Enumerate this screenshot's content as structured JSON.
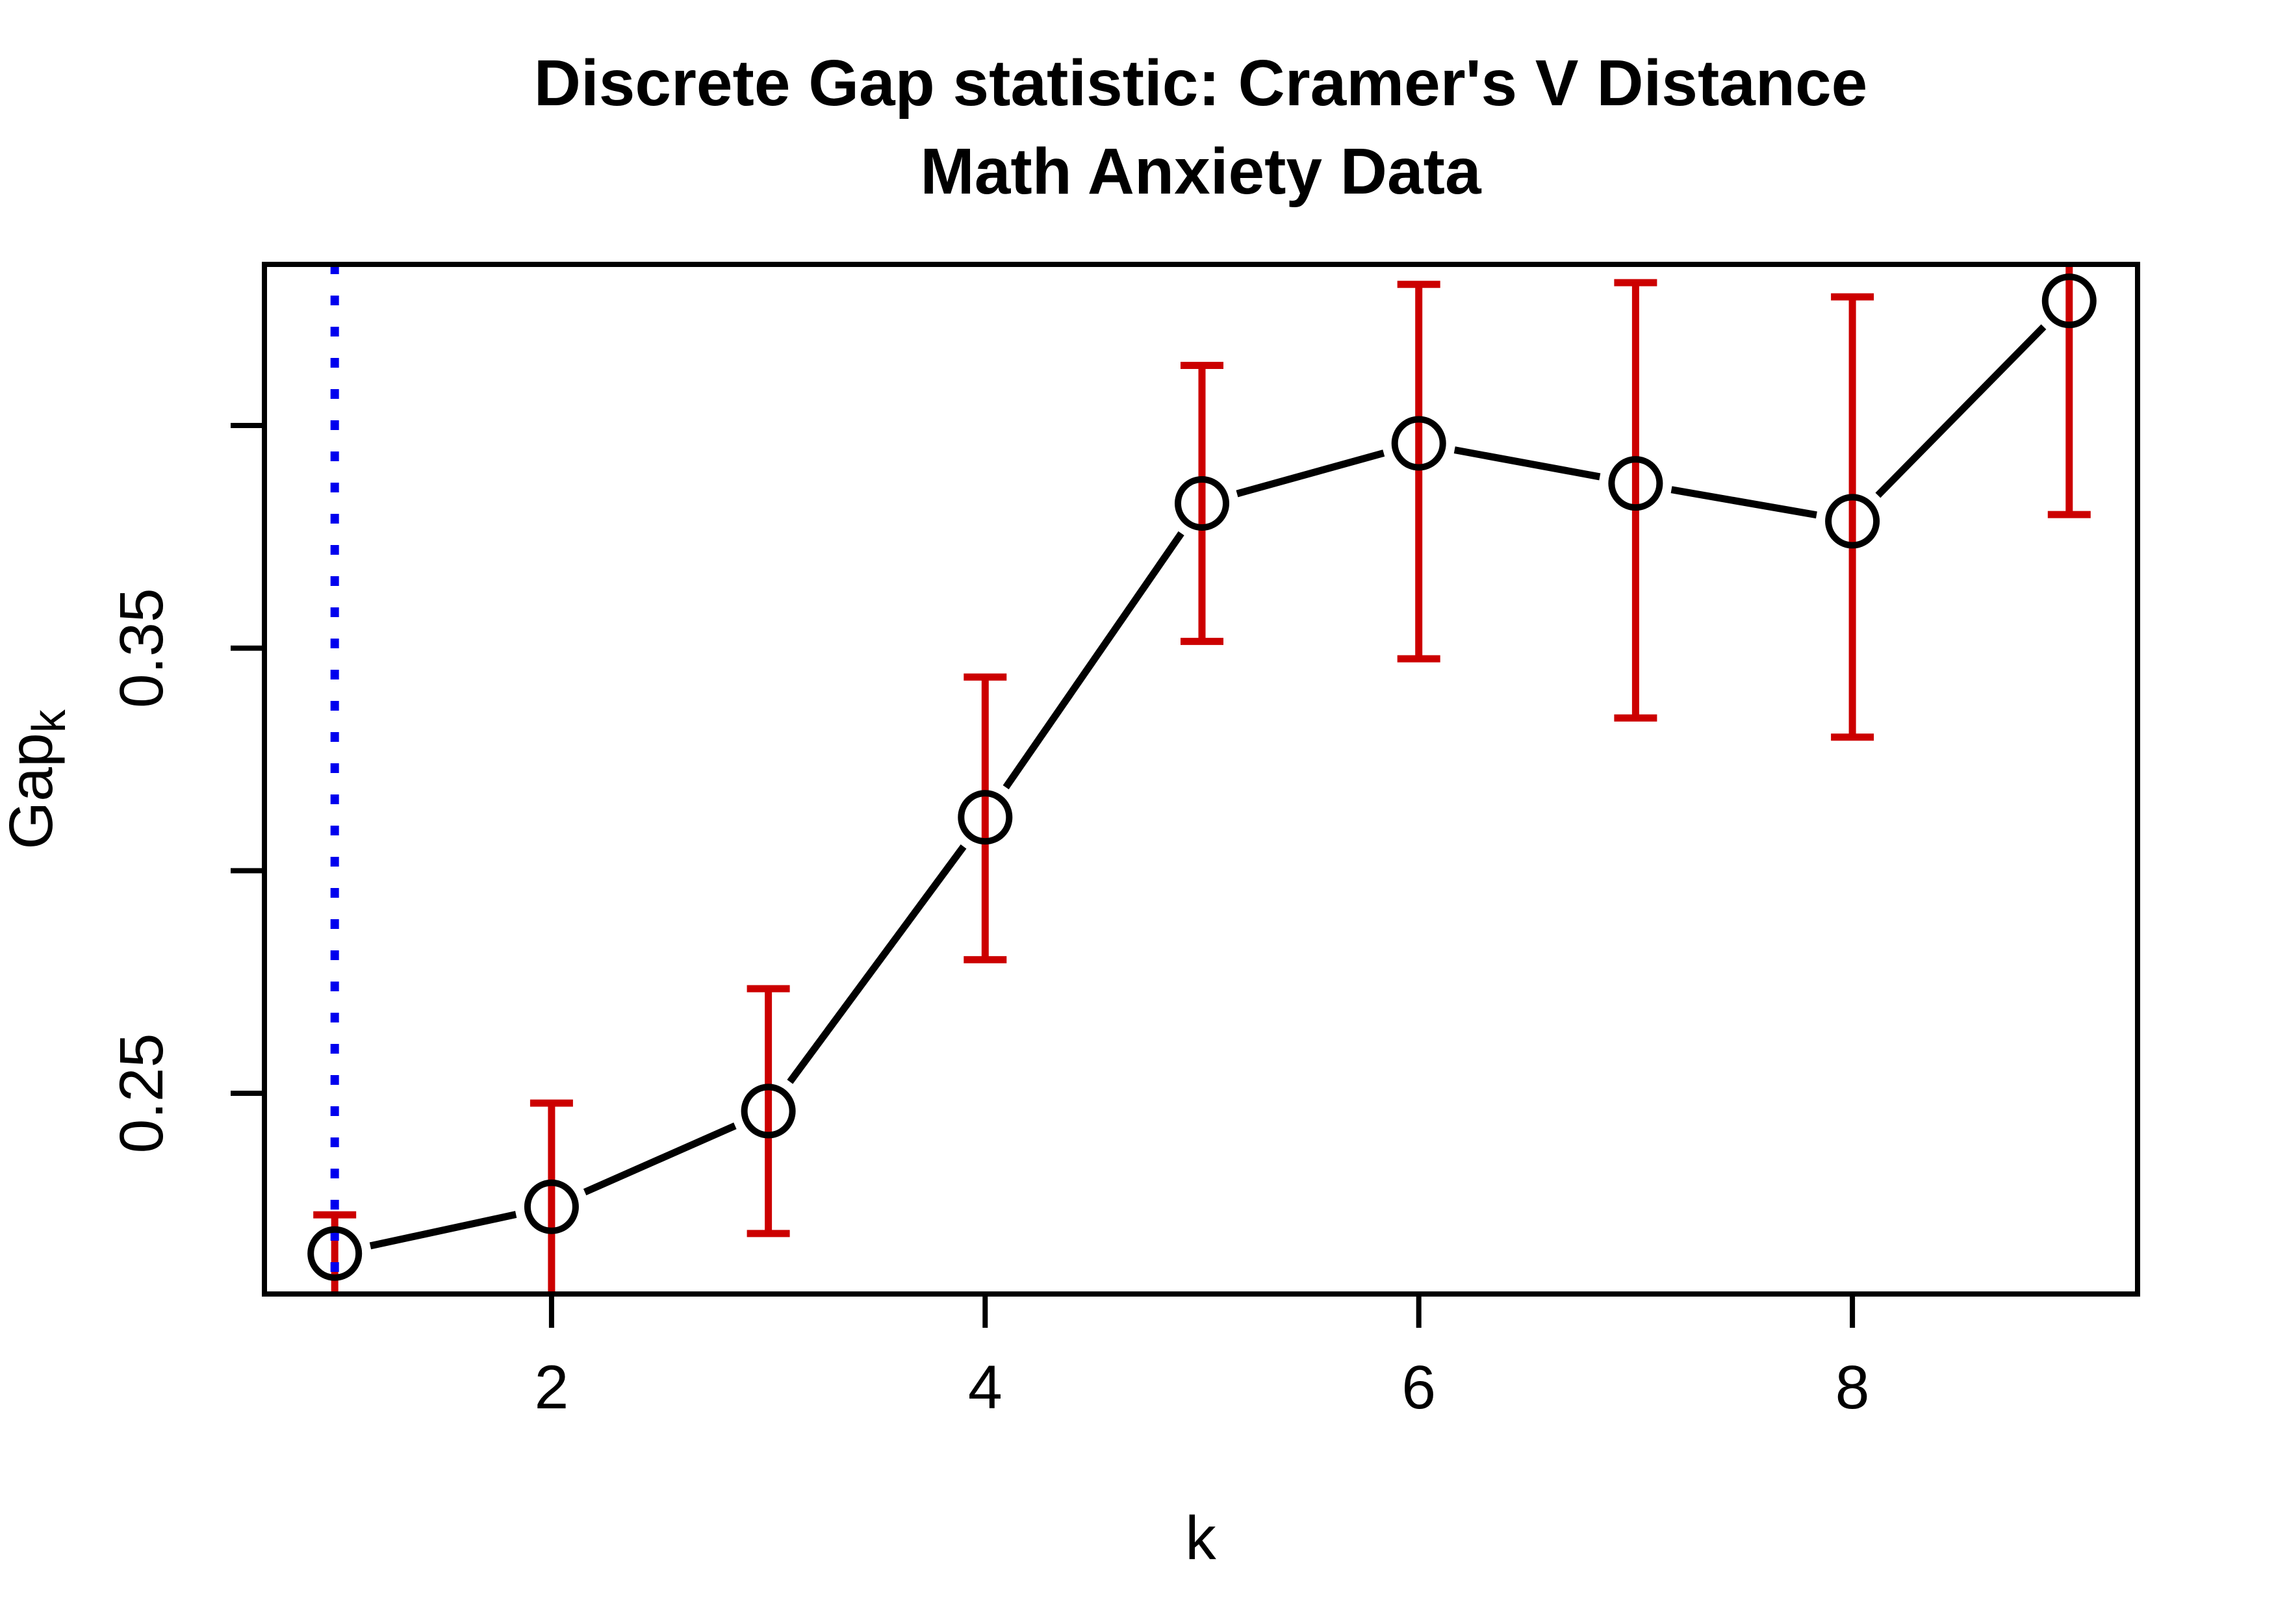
{
  "chart_data": {
    "type": "line",
    "title": "Discrete Gap statistic: Cramer's V Distance",
    "subtitle": "Math Anxiety Data",
    "xlabel": "k",
    "ylabel_main": "Gap",
    "ylabel_sub": "k",
    "x": [
      1,
      2,
      3,
      4,
      5,
      6,
      7,
      8,
      9
    ],
    "series": [
      {
        "name": "Gap statistic",
        "values": [
          0.214,
          0.2245,
          0.246,
          0.312,
          0.3825,
          0.396,
          0.387,
          0.3785,
          0.428
        ]
      }
    ],
    "error_bars": {
      "upper": [
        0.2227,
        0.2478,
        0.2735,
        0.3435,
        0.4135,
        0.4317,
        0.4321,
        0.4289,
        0.4362
      ],
      "lower": [
        0.2049,
        0.2049,
        0.2185,
        0.28,
        0.3515,
        0.3476,
        0.3343,
        0.33,
        0.38
      ],
      "upper_has_cap": [
        true,
        true,
        true,
        true,
        true,
        true,
        true,
        true,
        false
      ],
      "lower_has_cap": [
        false,
        false,
        true,
        true,
        true,
        true,
        true,
        true,
        true
      ]
    },
    "x_axis": {
      "tick_values": [
        2,
        4,
        6,
        8
      ],
      "tick_labels": [
        "2",
        "4",
        "6",
        "8"
      ],
      "range": [
        0.68,
        9.32
      ]
    },
    "y_axis": {
      "tick_values": [
        0.25,
        0.3,
        0.35,
        0.4
      ],
      "labeled_ticks": [
        {
          "value": 0.25,
          "label": "0.25"
        },
        {
          "value": 0.35,
          "label": "0.35"
        }
      ],
      "range": [
        0.205,
        0.4362
      ]
    },
    "reference_line": {
      "x": 1,
      "style": "dotted"
    },
    "legend": "none",
    "grid": false,
    "colors": {
      "series_line": "#000000",
      "marker_stroke": "#000000",
      "error_bar": "#CC0000",
      "reference_line": "#0000EE",
      "box": "#000000",
      "background": "#FFFFFF"
    },
    "marker": "open-circle"
  }
}
